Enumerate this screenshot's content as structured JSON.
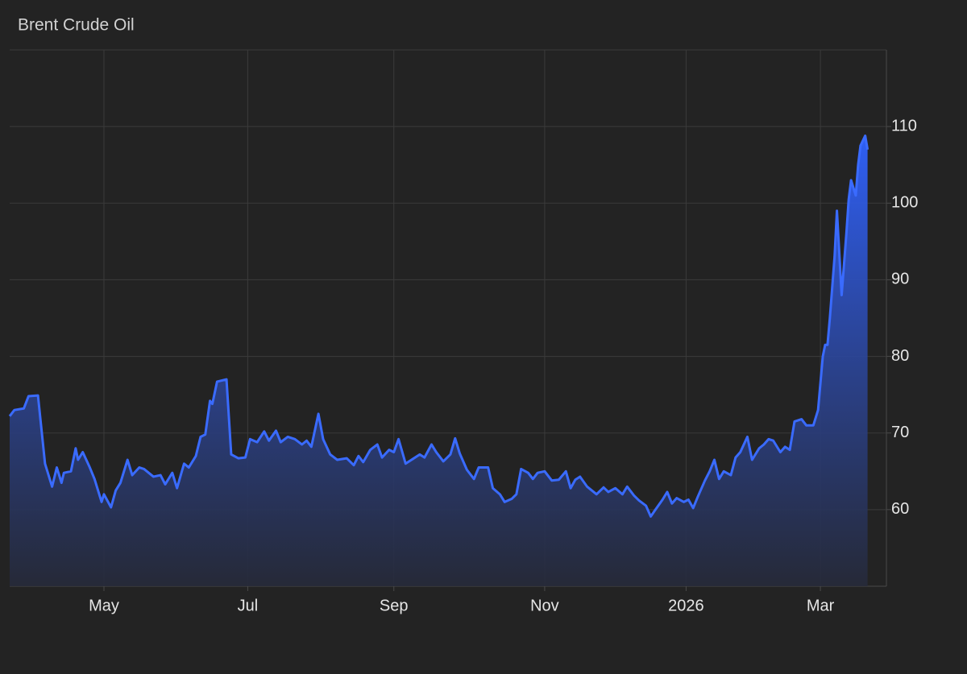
{
  "chart_data": {
    "type": "area",
    "title": "Brent Crude Oil",
    "color": "#3a6bff",
    "x": [
      -40,
      -38,
      -34,
      -32,
      -28,
      -25,
      -22,
      -20,
      -18,
      -17,
      -14,
      -12,
      -11,
      -9,
      -6,
      -4,
      -1,
      0,
      3,
      5,
      7,
      10,
      12,
      15,
      17,
      21,
      24,
      26,
      29,
      31,
      34,
      36,
      39,
      41,
      43,
      45,
      46,
      48,
      52,
      54,
      57,
      60,
      62,
      65,
      68,
      70,
      73,
      75,
      78,
      81,
      84,
      86,
      88,
      91,
      93,
      96,
      99,
      103,
      106,
      108,
      110,
      113,
      116,
      118,
      121,
      123,
      125,
      128,
      131,
      134,
      136,
      139,
      141,
      144,
      147,
      149,
      151,
      154,
      157,
      159,
      163,
      165,
      168,
      170,
      173,
      175,
      177,
      180,
      182,
      184,
      187,
      190,
      193,
      196,
      198,
      200,
      202,
      205,
      207,
      209,
      212,
      214,
      217,
      220,
      222,
      225,
      227,
      230,
      232,
      234,
      237,
      239,
      241,
      243,
      246,
      248,
      250,
      252,
      255,
      257,
      259,
      261,
      263,
      266,
      268,
      270,
      273,
      275,
      278,
      280,
      282,
      284,
      287,
      289,
      291,
      293,
      296,
      298,
      301,
      303,
      305,
      306,
      307,
      308,
      310,
      311,
      313,
      315,
      316,
      317,
      319,
      320,
      321,
      323,
      324
    ],
    "values": [
      72.2,
      73,
      73.2,
      74.8,
      74.9,
      66,
      63,
      65.5,
      63.5,
      64.8,
      65,
      68,
      66.5,
      67.5,
      65.5,
      64,
      61,
      62,
      60.3,
      62.5,
      63.5,
      66.5,
      64.5,
      65.5,
      65.3,
      64.3,
      64.5,
      63.3,
      64.8,
      62.8,
      66,
      65.5,
      67,
      69.5,
      69.8,
      74.2,
      73.8,
      76.7,
      77,
      67.2,
      66.7,
      66.8,
      69.2,
      68.8,
      70.2,
      69,
      70.3,
      68.8,
      69.5,
      69.2,
      68.5,
      69,
      68.2,
      72.5,
      69.2,
      67.2,
      66.5,
      66.7,
      65.8,
      67,
      66.2,
      67.8,
      68.5,
      66.8,
      67.8,
      67.5,
      69.2,
      66,
      66.6,
      67.2,
      66.8,
      68.5,
      67.5,
      66.3,
      67.2,
      69.3,
      67.3,
      65.2,
      64,
      65.5,
      65.5,
      62.8,
      62,
      61,
      61.4,
      62,
      65.3,
      64.8,
      64,
      64.8,
      65,
      63.8,
      63.9,
      65,
      62.8,
      63.9,
      64.3,
      63,
      62.5,
      62,
      62.9,
      62.3,
      62.8,
      62,
      63,
      61.8,
      61.2,
      60.5,
      59.1,
      60,
      61.3,
      62.3,
      60.8,
      61.5,
      61,
      61.3,
      60.2,
      61.7,
      63.8,
      65,
      66.5,
      64,
      65,
      64.5,
      66.8,
      67.5,
      69.5,
      66.5,
      68,
      68.5,
      69.2,
      69,
      67.5,
      68.2,
      67.8,
      71.5,
      71.8,
      71,
      71,
      73,
      80,
      81.5,
      81.5,
      85,
      93,
      99,
      88,
      96,
      100.5,
      103,
      101,
      105,
      107.5,
      108.8,
      107
    ],
    "xlim": [
      -40,
      332
    ],
    "xticks": [
      {
        "value": 0,
        "label": "May"
      },
      {
        "value": 61,
        "label": "Jul"
      },
      {
        "value": 123,
        "label": "Sep"
      },
      {
        "value": 187,
        "label": "Nov"
      },
      {
        "value": 247,
        "label": "2026"
      },
      {
        "value": 304,
        "label": "Mar"
      }
    ],
    "ylim": [
      50,
      120
    ],
    "yticks": [
      60,
      70,
      80,
      90,
      100,
      110
    ],
    "grid": true
  }
}
